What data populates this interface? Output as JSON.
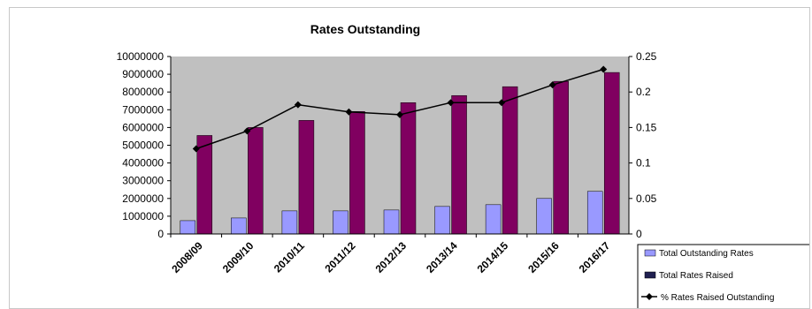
{
  "chart_data": {
    "type": "bar",
    "title": "Rates Outstanding",
    "categories": [
      "2008/09",
      "2009/10",
      "2010/11",
      "2011/12",
      "2012/13",
      "2013/14",
      "2014/15",
      "2015/16",
      "2016/17"
    ],
    "series": [
      {
        "name": "Total Outstanding Rates",
        "type": "bar",
        "axis": "left",
        "color": "#9999ff",
        "values": [
          750000,
          900000,
          1300000,
          1300000,
          1350000,
          1550000,
          1650000,
          2000000,
          2400000
        ]
      },
      {
        "name": "Total Rates Raised",
        "type": "bar",
        "axis": "left",
        "color": "#800060",
        "values": [
          5550000,
          6000000,
          6400000,
          6900000,
          7400000,
          7800000,
          8300000,
          8600000,
          9100000
        ]
      },
      {
        "name": "% Rates Raised Outstanding",
        "type": "line",
        "axis": "right",
        "color": "#000000",
        "values": [
          0.12,
          0.145,
          0.182,
          0.172,
          0.168,
          0.185,
          0.185,
          0.21,
          0.232
        ]
      }
    ],
    "yleft": {
      "min": 0,
      "max": 10000000,
      "step": 1000000
    },
    "yright": {
      "min": 0,
      "max": 0.25,
      "step": 0.05
    },
    "grid": false,
    "plot_background": "#c0c0c0",
    "legend_position": "bottom-right"
  }
}
